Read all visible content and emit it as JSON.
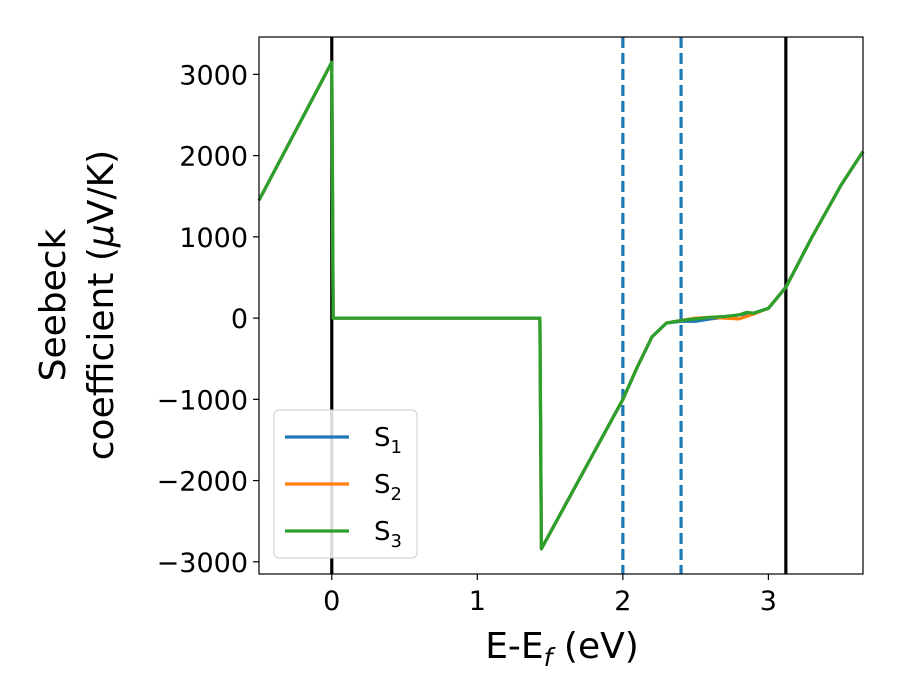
{
  "chart_data": {
    "type": "line",
    "xlabel": "E-E",
    "xlabel_sub": "f",
    "xlabel_unit": " (eV)",
    "ylabel_line1": "Seebeck",
    "ylabel_line2": "coefficient  (",
    "ylabel_mu": "μ",
    "ylabel_unit": "V/K)",
    "xlim": [
      -0.5,
      3.65
    ],
    "ylim": [
      -3150,
      3460
    ],
    "xticks": [
      0,
      1,
      2,
      3
    ],
    "xtick_labels": [
      "0",
      "1",
      "2",
      "3"
    ],
    "yticks": [
      3000,
      2000,
      1000,
      0,
      -1000,
      -2000,
      -3000
    ],
    "ytick_labels": [
      "3000",
      "2000",
      "1000",
      "0",
      "−1000",
      "−2000",
      "−3000"
    ],
    "vlines_solid": [
      0.0,
      3.12
    ],
    "vlines_dashed": [
      2.0,
      2.4
    ],
    "legend_position": "lower-left",
    "grid": false,
    "series": [
      {
        "name": "S",
        "sub": "1",
        "color": "#1f77b4",
        "x": [
          -0.5,
          0.0,
          0.01,
          1.43,
          1.44,
          2.0,
          2.1,
          2.2,
          2.3,
          2.4,
          2.5,
          2.6,
          2.7,
          2.8,
          2.9,
          3.0,
          3.12,
          3.3,
          3.5,
          3.65
        ],
        "y": [
          1450,
          3150,
          0,
          0,
          -2840,
          -1000,
          -600,
          -230,
          -60,
          -40,
          -40,
          -10,
          10,
          40,
          60,
          120,
          380,
          1000,
          1640,
          2050
        ]
      },
      {
        "name": "S",
        "sub": "2",
        "color": "#ff7f0e",
        "x": [
          -0.5,
          0.0,
          0.01,
          1.43,
          1.44,
          2.0,
          2.1,
          2.2,
          2.3,
          2.4,
          2.5,
          2.6,
          2.7,
          2.8,
          2.9,
          3.0,
          3.12,
          3.3,
          3.5,
          3.65
        ],
        "y": [
          1450,
          3150,
          0,
          0,
          -2840,
          -1000,
          -600,
          -230,
          -60,
          -30,
          0,
          10,
          0,
          -10,
          50,
          120,
          380,
          1000,
          1640,
          2050
        ]
      },
      {
        "name": "S",
        "sub": "3",
        "color": "#2ca02c",
        "x": [
          -0.5,
          0.0,
          0.01,
          1.43,
          1.44,
          2.0,
          2.1,
          2.2,
          2.3,
          2.4,
          2.5,
          2.6,
          2.7,
          2.8,
          2.85,
          2.9,
          3.0,
          3.12,
          3.3,
          3.5,
          3.65
        ],
        "y": [
          1450,
          3150,
          0,
          0,
          -2840,
          -1000,
          -600,
          -230,
          -60,
          -30,
          -10,
          10,
          20,
          40,
          70,
          60,
          120,
          380,
          1000,
          1640,
          2050
        ]
      }
    ]
  }
}
